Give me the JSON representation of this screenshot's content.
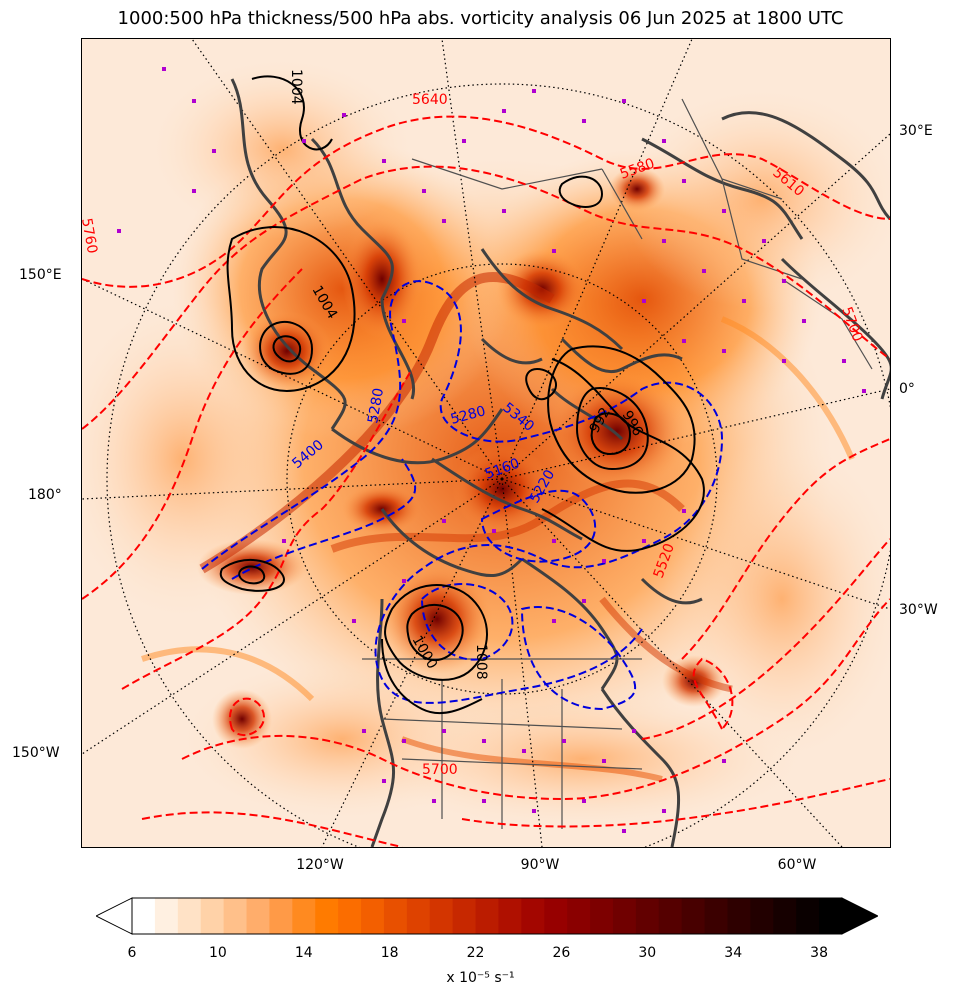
{
  "title": "1000:500 hPa thickness/500 hPa abs. vorticity analysis 06 Jun 2025 at 1800 UTC",
  "longitude_labels": {
    "e30": "30°E",
    "e150": "150°E",
    "zero": "0°",
    "d180": "180°",
    "w30": "30°W",
    "w150": "150°W",
    "w120": "120°W",
    "w90": "90°W",
    "w60": "60°W"
  },
  "contour_labels": {
    "thickness_red": [
      "5640",
      "5700",
      "5580",
      "5520",
      "5760",
      "5610",
      "5700"
    ],
    "thickness_blue": [
      "5280",
      "5340",
      "5220",
      "5400",
      "5160",
      "5280"
    ],
    "pressure_black": [
      "1004",
      "1000",
      "996",
      "992",
      "1008",
      "1004"
    ]
  },
  "colorbar": {
    "ticks": [
      "6",
      "10",
      "14",
      "18",
      "22",
      "26",
      "30",
      "34",
      "38"
    ],
    "label": "x 10⁻⁵ s⁻¹",
    "colors": [
      "#ffffff",
      "#fff0e1",
      "#ffe2c6",
      "#ffd2a8",
      "#ffc08a",
      "#ffad6b",
      "#ff9a47",
      "#ff8a20",
      "#ff7b00",
      "#fb6d00",
      "#f35f00",
      "#e85000",
      "#de4200",
      "#d33500",
      "#c72800",
      "#bb1c00",
      "#af1000",
      "#a30600",
      "#970000",
      "#8a0000",
      "#7d0000",
      "#700000",
      "#620000",
      "#550000",
      "#480000",
      "#3b0000",
      "#2e0000",
      "#220000",
      "#160000",
      "#0a0000",
      "#000000"
    ]
  }
}
